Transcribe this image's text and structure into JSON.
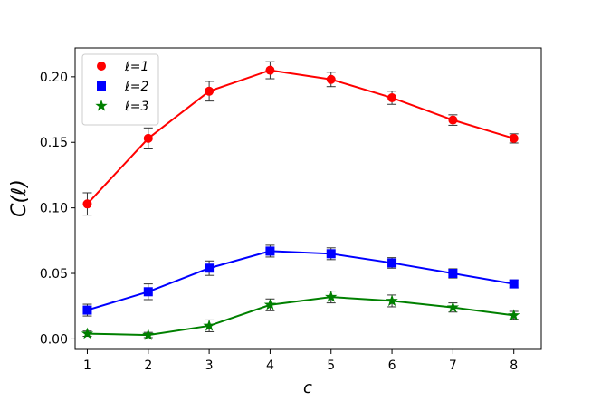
{
  "chart_data": {
    "type": "line",
    "xlabel": "c",
    "ylabel": "C(ℓ)",
    "xlim": [
      0.8,
      8.45
    ],
    "ylim": [
      -0.008,
      0.222
    ],
    "x_ticks": [
      1,
      2,
      3,
      4,
      5,
      6,
      7,
      8
    ],
    "y_ticks": [
      0.0,
      0.05,
      0.1,
      0.15,
      0.2
    ],
    "y_tick_labels": [
      "0.00",
      "0.05",
      "0.10",
      "0.15",
      "0.20"
    ],
    "grid": false,
    "legend_position": "top-left",
    "series": [
      {
        "name": "ℓ=1",
        "color": "#ff0000",
        "marker": "circle",
        "x": [
          1,
          2,
          3,
          4,
          5,
          6,
          7,
          8
        ],
        "y": [
          0.103,
          0.153,
          0.189,
          0.205,
          0.198,
          0.184,
          0.167,
          0.153
        ],
        "err": [
          0.0085,
          0.008,
          0.0075,
          0.0065,
          0.0055,
          0.005,
          0.004,
          0.0035
        ]
      },
      {
        "name": "ℓ=2",
        "color": "#0000ff",
        "marker": "square",
        "x": [
          1,
          2,
          3,
          4,
          5,
          6,
          7,
          8
        ],
        "y": [
          0.022,
          0.036,
          0.054,
          0.067,
          0.065,
          0.058,
          0.05,
          0.042
        ],
        "err": [
          0.0045,
          0.006,
          0.0055,
          0.0045,
          0.0045,
          0.004,
          0.0035,
          0.003
        ]
      },
      {
        "name": "ℓ=3",
        "color": "#008000",
        "marker": "star",
        "x": [
          1,
          2,
          3,
          4,
          5,
          6,
          7,
          8
        ],
        "y": [
          0.004,
          0.003,
          0.01,
          0.026,
          0.032,
          0.029,
          0.024,
          0.018
        ],
        "err": [
          0.002,
          0.002,
          0.0045,
          0.0045,
          0.0045,
          0.0045,
          0.0035,
          0.003
        ]
      }
    ]
  }
}
